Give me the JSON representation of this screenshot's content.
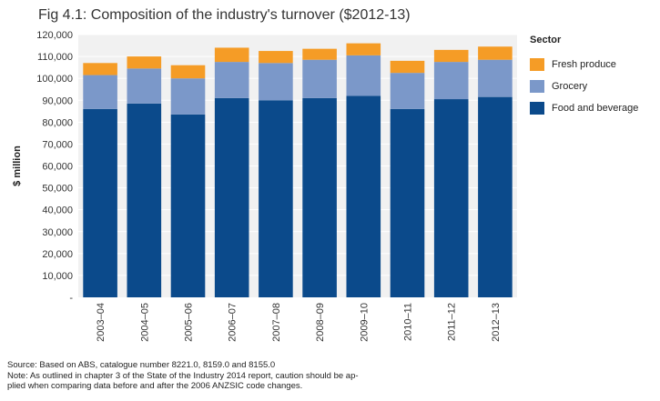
{
  "chart_data": {
    "type": "bar",
    "stacked": true,
    "title": "Fig 4.1: Composition of the industry's turnover ($2012-13)",
    "ylabel": "$ million",
    "xlabel": "",
    "ylim": [
      0,
      120000
    ],
    "yticks": [
      "-",
      "10,000",
      "20,000",
      "30,000",
      "40,000",
      "50,000",
      "60,000",
      "70,000",
      "80,000",
      "90,000",
      "100,000",
      "110,000",
      "120,000"
    ],
    "categories": [
      "2003–04",
      "2004–05",
      "2005–06",
      "2006–07",
      "2007–08",
      "2008–09",
      "2009–10",
      "2010–11",
      "2011–12",
      "2012–13"
    ],
    "legend_title": "Sector",
    "legend_position": "right",
    "grid": true,
    "series": [
      {
        "name": "Food and beverage",
        "color": "#0b4a8b",
        "values": [
          86000,
          88500,
          83500,
          91000,
          90000,
          91000,
          92000,
          86000,
          90500,
          91500
        ]
      },
      {
        "name": "Grocery",
        "color": "#7b98c9",
        "values": [
          15500,
          16000,
          16500,
          16500,
          17000,
          17500,
          18500,
          16500,
          17000,
          17000
        ]
      },
      {
        "name": "Fresh produce",
        "color": "#f59c26",
        "values": [
          5500,
          5500,
          6000,
          6500,
          5500,
          5000,
          5500,
          5500,
          5500,
          6000
        ]
      }
    ],
    "legend_order": [
      "Fresh produce",
      "Grocery",
      "Food and beverage"
    ]
  },
  "footer": {
    "source": "Source: Based on ABS, catalogue number 8221.0, 8159.0 and 8155.0",
    "note": "Note: As outlined in chapter 3 of the State of the Industry 2014 report, caution should be ap-",
    "note2": "plied when comparing data before and after the 2006 ANZSIC code changes."
  }
}
